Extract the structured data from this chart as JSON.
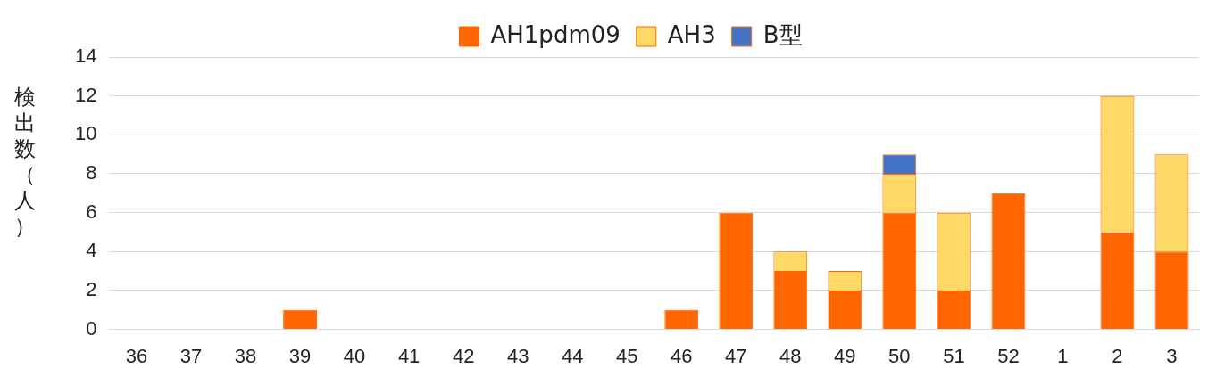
{
  "chart_data": {
    "type": "bar",
    "ylabel": "検出数（人）",
    "stacked": true,
    "legend": "top",
    "grid": "y",
    "categories": [
      "36",
      "37",
      "38",
      "39",
      "40",
      "41",
      "42",
      "43",
      "44",
      "45",
      "46",
      "47",
      "48",
      "49",
      "50",
      "51",
      "52",
      "1",
      "2",
      "3"
    ],
    "ylim": [
      0,
      14
    ],
    "yticks": [
      0,
      2,
      4,
      6,
      8,
      10,
      12,
      14
    ],
    "series": [
      {
        "name": "AH1pdm09",
        "color": "#ff6600",
        "values": [
          0,
          0,
          0,
          1,
          0,
          0,
          0,
          0,
          0,
          0,
          1,
          6,
          3,
          2,
          6,
          2,
          7,
          0,
          5,
          4
        ]
      },
      {
        "name": "AH3",
        "color": "#ffd966",
        "values": [
          0,
          0,
          0,
          0,
          0,
          0,
          0,
          0,
          0,
          0,
          0,
          0,
          1,
          1,
          2,
          4,
          0,
          0,
          7,
          5
        ]
      },
      {
        "name": "B型",
        "color": "#4472c4",
        "values": [
          0,
          0,
          0,
          0,
          0,
          0,
          0,
          0,
          0,
          0,
          0,
          0,
          0,
          0,
          1,
          0,
          0,
          0,
          0,
          0
        ]
      }
    ]
  }
}
